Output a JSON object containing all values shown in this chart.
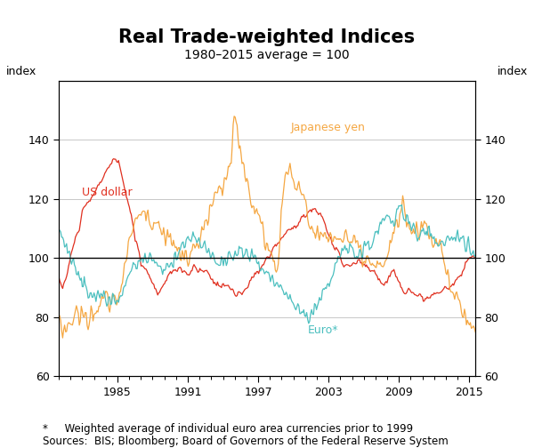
{
  "title": "Real Trade-weighted Indices",
  "subtitle": "1980–2015 average = 100",
  "ylabel_left": "index",
  "ylabel_right": "index",
  "xlim": [
    1980.0,
    2015.5
  ],
  "ylim": [
    60,
    160
  ],
  "yticks": [
    60,
    80,
    100,
    120,
    140
  ],
  "xticks": [
    1985,
    1991,
    1997,
    2003,
    2009,
    2015
  ],
  "hline_y": 100,
  "color_usd": "#e03020",
  "color_yen": "#f5a742",
  "color_euro": "#4bbfbf",
  "label_usd": "US dollar",
  "label_yen": "Japanese yen",
  "label_euro": "Euro*",
  "footnote1": "*     Weighted average of individual euro area currencies prior to 1999",
  "footnote2": "Sources:  BIS; Bloomberg; Board of Governors of the Federal Reserve System",
  "title_fontsize": 15,
  "subtitle_fontsize": 10,
  "label_fontsize": 9,
  "annotation_fontsize": 9,
  "tick_fontsize": 9,
  "footnote_fontsize": 8.5
}
